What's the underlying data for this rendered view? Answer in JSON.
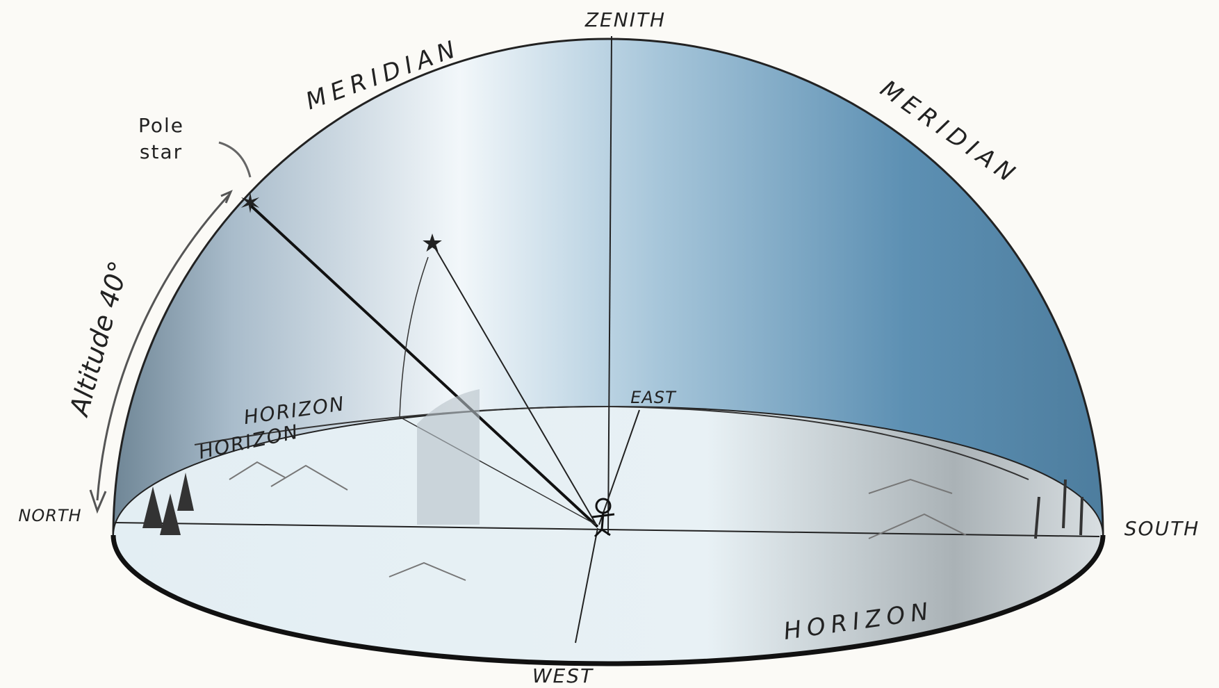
{
  "labels": {
    "zenith": "ZENITH",
    "meridian_left": "MERIDIAN",
    "meridian_right": "MERIDIAN",
    "pole_star": [
      "Pole",
      "star"
    ],
    "altitude": "Altitude 40°",
    "horizon_back_upper": "HORIZON",
    "horizon_back_lower": "HORIZON",
    "horizon_front": "HORIZON",
    "east": "EAST",
    "north": "NORTH",
    "south": "SOUTH",
    "west": "WEST"
  }
}
